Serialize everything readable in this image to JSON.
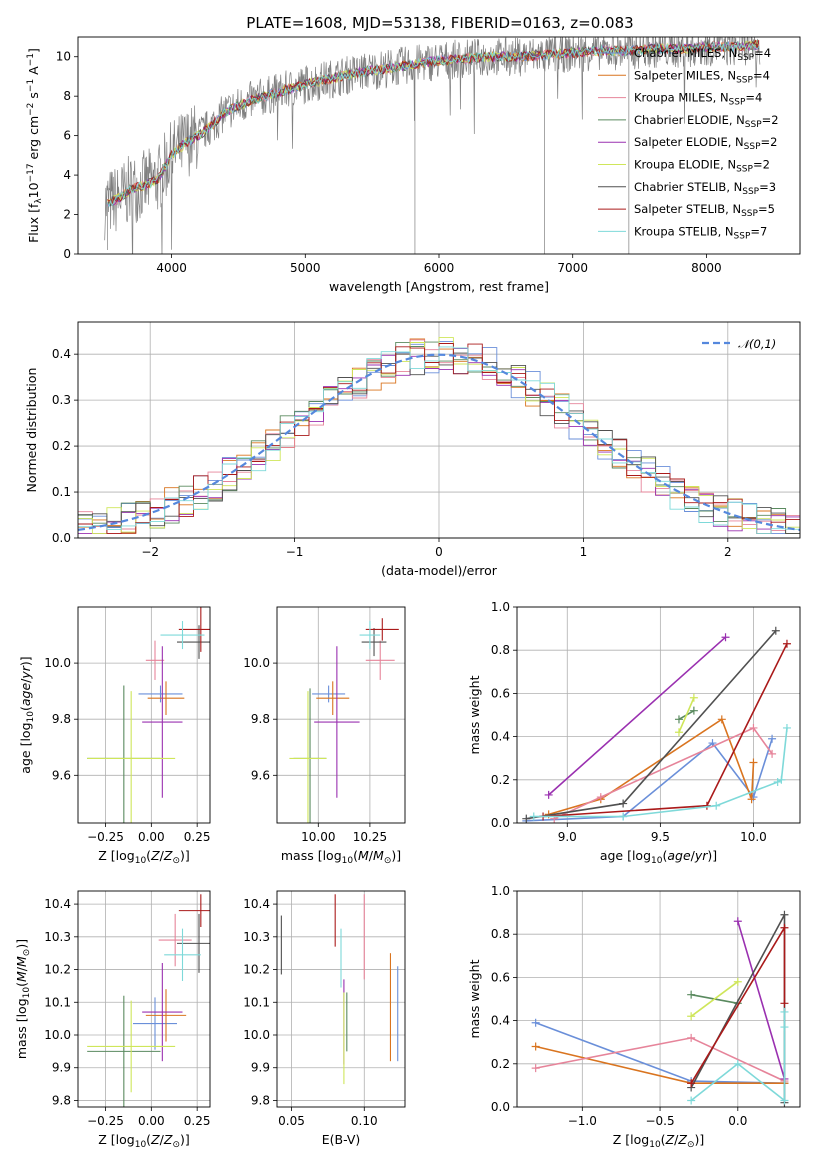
{
  "title": "PLATE=1608, MJD=53138, FIBERID=0163, z=0.083",
  "models": [
    {
      "name": "Chabrier MILES, N<sub>SSP</sub>=4",
      "color": "#6a8fd9"
    },
    {
      "name": "Salpeter MILES, N<sub>SSP</sub>=4",
      "color": "#d9741f"
    },
    {
      "name": "Kroupa MILES, N<sub>SSP</sub>=4",
      "color": "#e6849a"
    },
    {
      "name": "Chabrier ELODIE, N<sub>SSP</sub>=2",
      "color": "#5a8a5f"
    },
    {
      "name": "Salpeter ELODIE, N<sub>SSP</sub>=2",
      "color": "#9a30b0"
    },
    {
      "name": "Kroupa ELODIE, N<sub>SSP</sub>=2",
      "color": "#cfe65a"
    },
    {
      "name": "Chabrier STELIB, N<sub>SSP</sub>=3",
      "color": "#505050"
    },
    {
      "name": "Salpeter STELIB, N<sub>SSP</sub>=5",
      "color": "#aa1a1a"
    },
    {
      "name": "Kroupa STELIB, N<sub>SSP</sub>=7",
      "color": "#7ed9d9"
    }
  ],
  "legend_labels": [
    "Chabrier MILES, N",
    "Salpeter MILES, N",
    "Kroupa MILES, N",
    "Chabrier ELODIE, N",
    "Salpeter ELODIE, N",
    "Kroupa ELODIE, N",
    "Chabrier STELIB, N",
    "Salpeter STELIB, N",
    "Kroupa STELIB, N"
  ],
  "legend_sub": "SSP",
  "legend_counts": [
    "=4",
    "=4",
    "=4",
    "=2",
    "=2",
    "=2",
    "=3",
    "=5",
    "=7"
  ],
  "chart_data": [
    {
      "id": "spectrum",
      "type": "line",
      "xlabel": "wavelength [Angstrom, rest frame]",
      "ylabel": "Flux [f_λ 10^-17 erg cm^-2 s^-1 A^-1]",
      "xlim": [
        3300,
        8700
      ],
      "ylim": [
        0,
        11
      ],
      "xticks": [
        4000,
        5000,
        6000,
        7000,
        8000
      ],
      "yticks": [
        0,
        2,
        4,
        6,
        8,
        10
      ],
      "data_color": "#808080",
      "x": [
        3500,
        3600,
        3700,
        3800,
        3900,
        4000,
        4100,
        4200,
        4300,
        4400,
        4500,
        4600,
        4700,
        4800,
        4900,
        5000,
        5200,
        5400,
        5600,
        5800,
        6000,
        6200,
        6400,
        6600,
        6800,
        7000,
        7200,
        7400,
        7600,
        7800,
        8000,
        8200,
        8400
      ],
      "y": [
        2.5,
        2.8,
        3.3,
        3.5,
        3.8,
        5.0,
        5.6,
        6.0,
        6.5,
        7.2,
        7.5,
        7.8,
        8.0,
        8.2,
        8.4,
        8.6,
        8.9,
        9.2,
        9.4,
        9.6,
        9.8,
        9.9,
        10.0,
        10.0,
        10.1,
        10.2,
        10.3,
        10.3,
        10.4,
        10.4,
        10.5,
        10.5,
        10.6
      ]
    },
    {
      "id": "residuals",
      "type": "histogram",
      "xlabel": "(data-model)/error",
      "ylabel": "Normed distribution",
      "xlim": [
        -2.5,
        2.5
      ],
      "ylim": [
        0,
        0.47
      ],
      "xticks": [
        -2,
        -1,
        0,
        1,
        2
      ],
      "yticks": [
        0.0,
        0.1,
        0.2,
        0.3,
        0.4
      ],
      "reference": {
        "label": "𝒩(0,1)",
        "color": "#5588dd"
      }
    },
    {
      "id": "age_vs_Z",
      "type": "errorbar",
      "xlabel": "Z [log10(Z/Z⊙)]",
      "ylabel": "age [log10(age/yr)]",
      "xlim": [
        -0.4,
        0.32
      ],
      "ylim": [
        9.43,
        10.2
      ],
      "xticks": [
        -0.25,
        0.0,
        0.25
      ],
      "yticks": [
        9.6,
        9.8,
        10.0
      ],
      "points": [
        {
          "x": 0.05,
          "y": 9.89,
          "xerr": 0.12,
          "yerr": 0.03
        },
        {
          "x": 0.08,
          "y": 9.875,
          "xerr": 0.1,
          "yerr": 0.06
        },
        {
          "x": 0.02,
          "y": 10.01,
          "xerr": 0.05,
          "yerr": 0.07
        },
        {
          "x": -0.15,
          "y": 9.66,
          "xerr": 0.2,
          "yerr": 0.26
        },
        {
          "x": 0.06,
          "y": 9.79,
          "xerr": 0.11,
          "yerr": 0.27
        },
        {
          "x": -0.11,
          "y": 9.66,
          "xerr": 0.24,
          "yerr": 0.24
        },
        {
          "x": 0.26,
          "y": 10.075,
          "xerr": 0.12,
          "yerr": 0.06
        },
        {
          "x": 0.27,
          "y": 10.12,
          "xerr": 0.12,
          "yerr": 0.08
        },
        {
          "x": 0.17,
          "y": 10.1,
          "xerr": 0.12,
          "yerr": 0.05
        }
      ]
    },
    {
      "id": "age_vs_mass",
      "type": "errorbar",
      "xlabel": "mass [log10(M/M⊙)]",
      "ylabel": "",
      "xlim": [
        9.8,
        10.42
      ],
      "ylim": [
        9.43,
        10.2
      ],
      "xticks": [
        10.0,
        10.25
      ],
      "yticks": [
        9.6,
        9.8,
        10.0
      ],
      "points": [
        {
          "x": 10.05,
          "y": 9.89,
          "xerr": 0.08,
          "yerr": 0.03
        },
        {
          "x": 10.07,
          "y": 9.875,
          "xerr": 0.08,
          "yerr": 0.06
        },
        {
          "x": 10.3,
          "y": 10.01,
          "xerr": 0.07,
          "yerr": 0.07
        },
        {
          "x": 9.96,
          "y": 9.66,
          "xerr": 0.08,
          "yerr": 0.25
        },
        {
          "x": 10.09,
          "y": 9.79,
          "xerr": 0.11,
          "yerr": 0.27
        },
        {
          "x": 9.95,
          "y": 9.66,
          "xerr": 0.09,
          "yerr": 0.24
        },
        {
          "x": 10.27,
          "y": 10.075,
          "xerr": 0.06,
          "yerr": 0.05
        },
        {
          "x": 10.31,
          "y": 10.12,
          "xerr": 0.08,
          "yerr": 0.04
        },
        {
          "x": 10.25,
          "y": 10.1,
          "xerr": 0.05,
          "yerr": 0.05
        }
      ]
    },
    {
      "id": "massweight_vs_age",
      "type": "line",
      "xlabel": "age [log10(age/yr)]",
      "ylabel": "mass weight",
      "xlim": [
        8.73,
        10.25
      ],
      "ylim": [
        0,
        1
      ],
      "xticks": [
        9.0,
        9.5,
        10.0
      ],
      "yticks": [
        0.0,
        0.2,
        0.4,
        0.6,
        0.8,
        1.0
      ],
      "series": [
        {
          "model": 0,
          "x": [
            8.78,
            9.3,
            9.78,
            10.0,
            10.1
          ],
          "y": [
            0.01,
            0.03,
            0.37,
            0.12,
            0.39
          ]
        },
        {
          "model": 1,
          "x": [
            8.9,
            9.18,
            9.83,
            9.99,
            10.0
          ],
          "y": [
            0.04,
            0.11,
            0.48,
            0.11,
            0.28
          ]
        },
        {
          "model": 2,
          "x": [
            8.93,
            9.18,
            10.0,
            10.1
          ],
          "y": [
            0.02,
            0.12,
            0.44,
            0.32
          ]
        },
        {
          "model": 3,
          "x": [
            9.6,
            9.68
          ],
          "y": [
            0.48,
            0.52
          ]
        },
        {
          "model": 4,
          "x": [
            8.9,
            9.85
          ],
          "y": [
            0.13,
            0.86
          ]
        },
        {
          "model": 5,
          "x": [
            9.6,
            9.68
          ],
          "y": [
            0.42,
            0.58
          ]
        },
        {
          "model": 6,
          "x": [
            8.78,
            9.3,
            10.12
          ],
          "y": [
            0.02,
            0.09,
            0.89
          ]
        },
        {
          "model": 7,
          "x": [
            8.87,
            9.75,
            10.18
          ],
          "y": [
            0.03,
            0.08,
            0.83
          ]
        },
        {
          "model": 8,
          "x": [
            8.82,
            9.3,
            9.8,
            10.13,
            10.15,
            10.18
          ],
          "y": [
            0.03,
            0.03,
            0.08,
            0.19,
            0.2,
            0.44
          ]
        }
      ]
    },
    {
      "id": "mass_vs_Z",
      "type": "errorbar",
      "xlabel": "Z [log10(Z/Z⊙)]",
      "ylabel": "mass [log10(M/M⊙)]",
      "xlim": [
        -0.4,
        0.32
      ],
      "ylim": [
        9.78,
        10.44
      ],
      "xticks": [
        -0.25,
        0.0,
        0.25
      ],
      "yticks": [
        9.8,
        9.9,
        10.0,
        10.1,
        10.2,
        10.3,
        10.4
      ],
      "points": [
        {
          "x": 0.02,
          "y": 10.035,
          "xerr": 0.12,
          "yerr": 0.08
        },
        {
          "x": 0.08,
          "y": 10.06,
          "xerr": 0.11,
          "yerr": 0.08
        },
        {
          "x": 0.13,
          "y": 10.29,
          "xerr": 0.09,
          "yerr": 0.08
        },
        {
          "x": -0.15,
          "y": 9.95,
          "xerr": 0.2,
          "yerr": 0.17
        },
        {
          "x": 0.06,
          "y": 10.07,
          "xerr": 0.11,
          "yerr": 0.15
        },
        {
          "x": -0.11,
          "y": 9.965,
          "xerr": 0.24,
          "yerr": 0.14
        },
        {
          "x": 0.26,
          "y": 10.28,
          "xerr": 0.12,
          "yerr": 0.09
        },
        {
          "x": 0.27,
          "y": 10.38,
          "xerr": 0.12,
          "yerr": 0.05
        },
        {
          "x": 0.17,
          "y": 10.245,
          "xerr": 0.1,
          "yerr": 0.08
        }
      ]
    },
    {
      "id": "mass_vs_ebv",
      "type": "errorbar",
      "xlabel": "E(B-V)",
      "ylabel": "",
      "xlim": [
        0.04,
        0.128
      ],
      "ylim": [
        9.78,
        10.44
      ],
      "xticks": [
        0.05,
        0.1
      ],
      "yticks": [
        9.8,
        9.9,
        10.0,
        10.1,
        10.2,
        10.3,
        10.4
      ],
      "points": [
        {
          "x": 0.123,
          "y": 10.065,
          "xerr": 0,
          "yerr": 0.145
        },
        {
          "x": 0.118,
          "y": 10.085,
          "xerr": 0,
          "yerr": 0.165
        },
        {
          "x": 0.1,
          "y": 10.3,
          "xerr": 0,
          "yerr": 0.13
        },
        {
          "x": 0.088,
          "y": 10.04,
          "xerr": 0,
          "yerr": 0.09
        },
        {
          "x": 0.086,
          "y": 10.04,
          "xerr": 0,
          "yerr": 0.13
        },
        {
          "x": 0.086,
          "y": 9.99,
          "xerr": 0,
          "yerr": 0.14
        },
        {
          "x": 0.043,
          "y": 10.275,
          "xerr": 0,
          "yerr": 0.09
        },
        {
          "x": 0.08,
          "y": 10.35,
          "xerr": 0,
          "yerr": 0.08
        },
        {
          "x": 0.084,
          "y": 10.235,
          "xerr": 0,
          "yerr": 0.09
        }
      ]
    },
    {
      "id": "massweight_vs_Z",
      "type": "line",
      "xlabel": "Z [log10(Z/Z⊙)]",
      "ylabel": "mass weight",
      "xlim": [
        -1.42,
        0.4
      ],
      "ylim": [
        0,
        1
      ],
      "xticks": [
        -1.0,
        -0.5,
        0.0
      ],
      "yticks": [
        0.0,
        0.2,
        0.4,
        0.6,
        0.8,
        1.0
      ],
      "series": [
        {
          "model": 0,
          "x": [
            -1.3,
            -0.3,
            0.3
          ],
          "y": [
            0.39,
            0.12,
            0.11
          ]
        },
        {
          "model": 1,
          "x": [
            -1.3,
            -0.3,
            0.3
          ],
          "y": [
            0.28,
            0.11,
            0.11
          ]
        },
        {
          "model": 2,
          "x": [
            -1.3,
            -0.3,
            0.3
          ],
          "y": [
            0.18,
            0.32,
            0.12
          ]
        },
        {
          "model": 3,
          "x": [
            -0.3,
            0.0
          ],
          "y": [
            0.52,
            0.48
          ]
        },
        {
          "model": 4,
          "x": [
            0.0,
            0.3
          ],
          "y": [
            0.86,
            0.13
          ]
        },
        {
          "model": 5,
          "x": [
            -0.3,
            0.0
          ],
          "y": [
            0.42,
            0.58
          ]
        },
        {
          "model": 6,
          "x": [
            -0.3,
            0.3,
            0.3
          ],
          "y": [
            0.09,
            0.89,
            0.02
          ]
        },
        {
          "model": 7,
          "x": [
            -0.3,
            0.3,
            0.3
          ],
          "y": [
            0.11,
            0.83,
            0.48
          ]
        },
        {
          "model": 8,
          "x": [
            -0.3,
            0.0,
            0.3,
            0.3,
            0.3
          ],
          "y": [
            0.03,
            0.2,
            0.03,
            0.37,
            0.44
          ]
        }
      ]
    }
  ]
}
